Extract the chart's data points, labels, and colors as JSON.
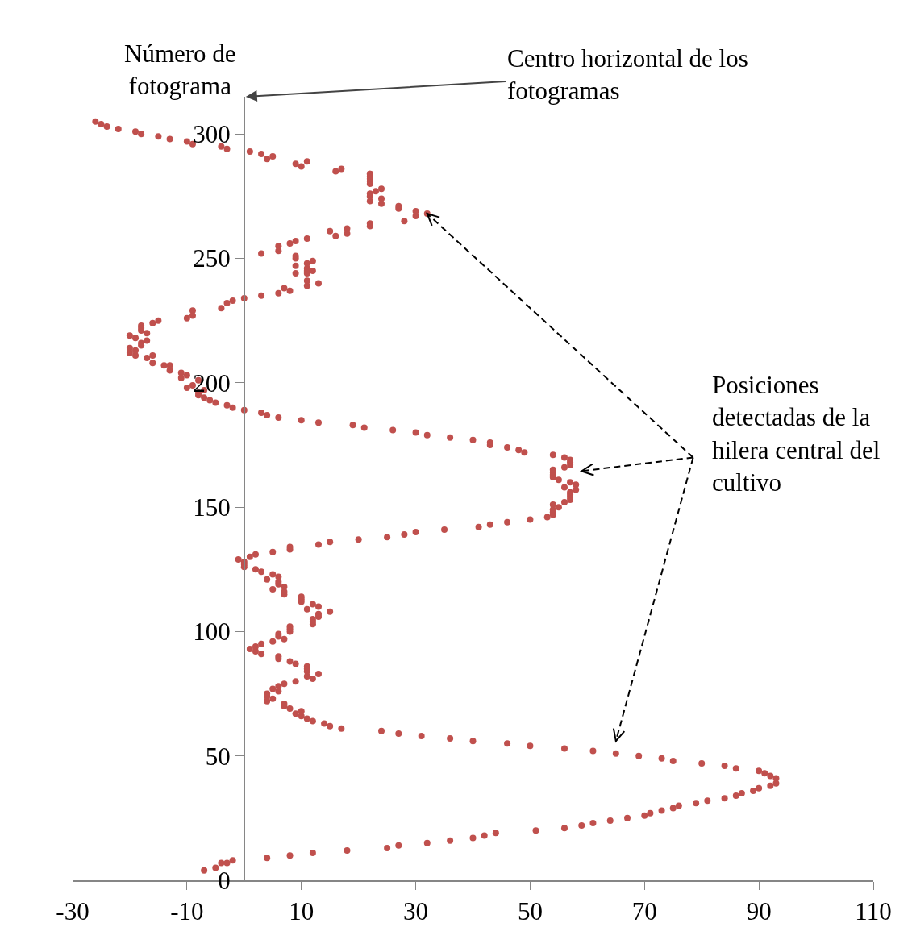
{
  "chart_data": {
    "type": "scatter",
    "ylabel": "Número de\nfotograma",
    "marker": "circle",
    "grid": false,
    "annotations": [
      "Centro horizontal de los\nfotogramas",
      "Posiciones\ndetectadas de la\nhilera central del\ncultivo"
    ],
    "xlim": [
      -30,
      110
    ],
    "xticks": [
      -30,
      -10,
      10,
      30,
      50,
      70,
      90,
      110
    ],
    "ylim": [
      0,
      315
    ],
    "yticks": [
      0,
      50,
      100,
      150,
      200,
      250,
      300
    ],
    "series": [
      {
        "color": "#c0504d",
        "x": [
          -7,
          -5,
          -4,
          -3,
          -2,
          4,
          8,
          12,
          18,
          25,
          27,
          32,
          36,
          40,
          42,
          44,
          51,
          56,
          59,
          61,
          64,
          67,
          70,
          71,
          73,
          75,
          76,
          79,
          81,
          84,
          86,
          87,
          89,
          90,
          92,
          93,
          93,
          92,
          91,
          90,
          86,
          84,
          80,
          75,
          73,
          69,
          65,
          61,
          56,
          50,
          46,
          40,
          36,
          31,
          27,
          24,
          17,
          15,
          14,
          12,
          11,
          10,
          9,
          10,
          8,
          7,
          7,
          4,
          5,
          4,
          4,
          6,
          5,
          6,
          7,
          9,
          12,
          11,
          13,
          11,
          11,
          11,
          9,
          8,
          6,
          6,
          3,
          2,
          1,
          2,
          3,
          5,
          7,
          6,
          6,
          8,
          8,
          8,
          12,
          12,
          12,
          13,
          13,
          15,
          11,
          13,
          12,
          10,
          10,
          10,
          7,
          7,
          5,
          7,
          6,
          6,
          4,
          6,
          5,
          3,
          2,
          0,
          0,
          0,
          -1,
          1,
          2,
          5,
          8,
          8,
          13,
          15,
          20,
          25,
          28,
          30,
          35,
          41,
          43,
          46,
          50,
          53,
          54,
          54,
          54,
          55,
          54,
          56,
          57,
          57,
          57,
          57,
          58,
          56,
          58,
          57,
          55,
          54,
          54,
          54,
          54,
          56,
          57,
          57,
          57,
          56,
          54,
          49,
          48,
          46,
          43,
          43,
          40,
          36,
          32,
          30,
          26,
          21,
          19,
          13,
          10,
          6,
          4,
          3,
          0,
          -2,
          -3,
          -5,
          -6,
          -7,
          -8,
          -8,
          -7,
          -10,
          -9,
          -8,
          -11,
          -10,
          -11,
          -13,
          -13,
          -14,
          -16,
          -17,
          -16,
          -19,
          -20,
          -19,
          -20,
          -18,
          -18,
          -17,
          -19,
          -20,
          -17,
          -18,
          -18,
          -18,
          -16,
          -15,
          -10,
          -9,
          -9,
          -4,
          -3,
          -2,
          0,
          3,
          6,
          8,
          7,
          11,
          13,
          11,
          11,
          11,
          12,
          9,
          9,
          11,
          11,
          12,
          9,
          9,
          3,
          6,
          6,
          8,
          9,
          11,
          16,
          18,
          15,
          18,
          22,
          22,
          28,
          30,
          32,
          30,
          27,
          27,
          24,
          22,
          24,
          22,
          22,
          23,
          24,
          22,
          22,
          22,
          22,
          22,
          22,
          16,
          17,
          10,
          9,
          11,
          4,
          5,
          3,
          1,
          -3,
          -4,
          -9,
          -10,
          -13,
          -15,
          -18,
          -19,
          -22,
          -24,
          -25,
          -26
        ],
        "values": [
          4,
          5,
          7,
          7,
          8,
          9,
          10,
          11,
          12,
          13,
          14,
          15,
          16,
          17,
          18,
          19,
          20,
          21,
          22,
          23,
          24,
          25,
          26,
          27,
          28,
          29,
          30,
          31,
          32,
          33,
          34,
          35,
          36,
          37,
          38,
          39,
          41,
          42,
          43,
          44,
          45,
          46,
          47,
          48,
          49,
          50,
          51,
          52,
          53,
          54,
          55,
          56,
          57,
          58,
          59,
          60,
          61,
          62,
          63,
          64,
          65,
          66,
          67,
          68,
          69,
          70,
          71,
          72,
          73,
          74,
          75,
          76,
          77,
          78,
          79,
          80,
          81,
          82,
          83,
          84,
          85,
          86,
          87,
          88,
          89,
          90,
          91,
          92,
          93,
          94,
          95,
          96,
          97,
          98,
          99,
          100,
          101,
          102,
          103,
          104,
          105,
          106,
          107,
          108,
          109,
          110,
          111,
          112,
          113,
          114,
          115,
          116,
          117,
          118,
          119,
          120,
          121,
          122,
          123,
          124,
          125,
          126,
          127,
          128,
          129,
          130,
          131,
          132,
          133,
          134,
          135,
          136,
          137,
          138,
          139,
          140,
          141,
          142,
          143,
          144,
          145,
          146,
          147,
          148,
          149,
          150,
          151,
          152,
          153,
          154,
          155,
          156,
          157,
          158,
          159,
          160,
          161,
          162,
          163,
          164,
          165,
          166,
          167,
          168,
          169,
          170,
          171,
          172,
          173,
          174,
          175,
          176,
          177,
          178,
          179,
          180,
          181,
          182,
          183,
          184,
          185,
          186,
          187,
          188,
          189,
          190,
          191,
          192,
          193,
          194,
          195,
          196,
          197,
          198,
          199,
          201,
          202,
          203,
          204,
          205,
          207,
          207,
          208,
          210,
          211,
          211,
          212,
          213,
          214,
          215,
          216,
          217,
          218,
          219,
          220,
          221,
          222,
          223,
          224,
          225,
          226,
          227,
          229,
          230,
          232,
          233,
          234,
          235,
          236,
          237,
          238,
          239,
          240,
          241,
          244,
          245,
          245,
          244,
          247,
          246,
          248,
          249,
          250,
          251,
          252,
          253,
          255,
          256,
          257,
          258,
          259,
          260,
          261,
          262,
          263,
          264,
          265,
          267,
          268,
          269,
          270,
          271,
          272,
          273,
          274,
          275,
          276,
          277,
          278,
          280,
          281,
          282,
          283,
          284,
          284,
          285,
          286,
          287,
          288,
          289,
          290,
          291,
          292,
          293,
          294,
          295,
          296,
          297,
          298,
          299,
          300,
          301,
          302,
          303,
          304,
          305
        ]
      }
    ]
  }
}
